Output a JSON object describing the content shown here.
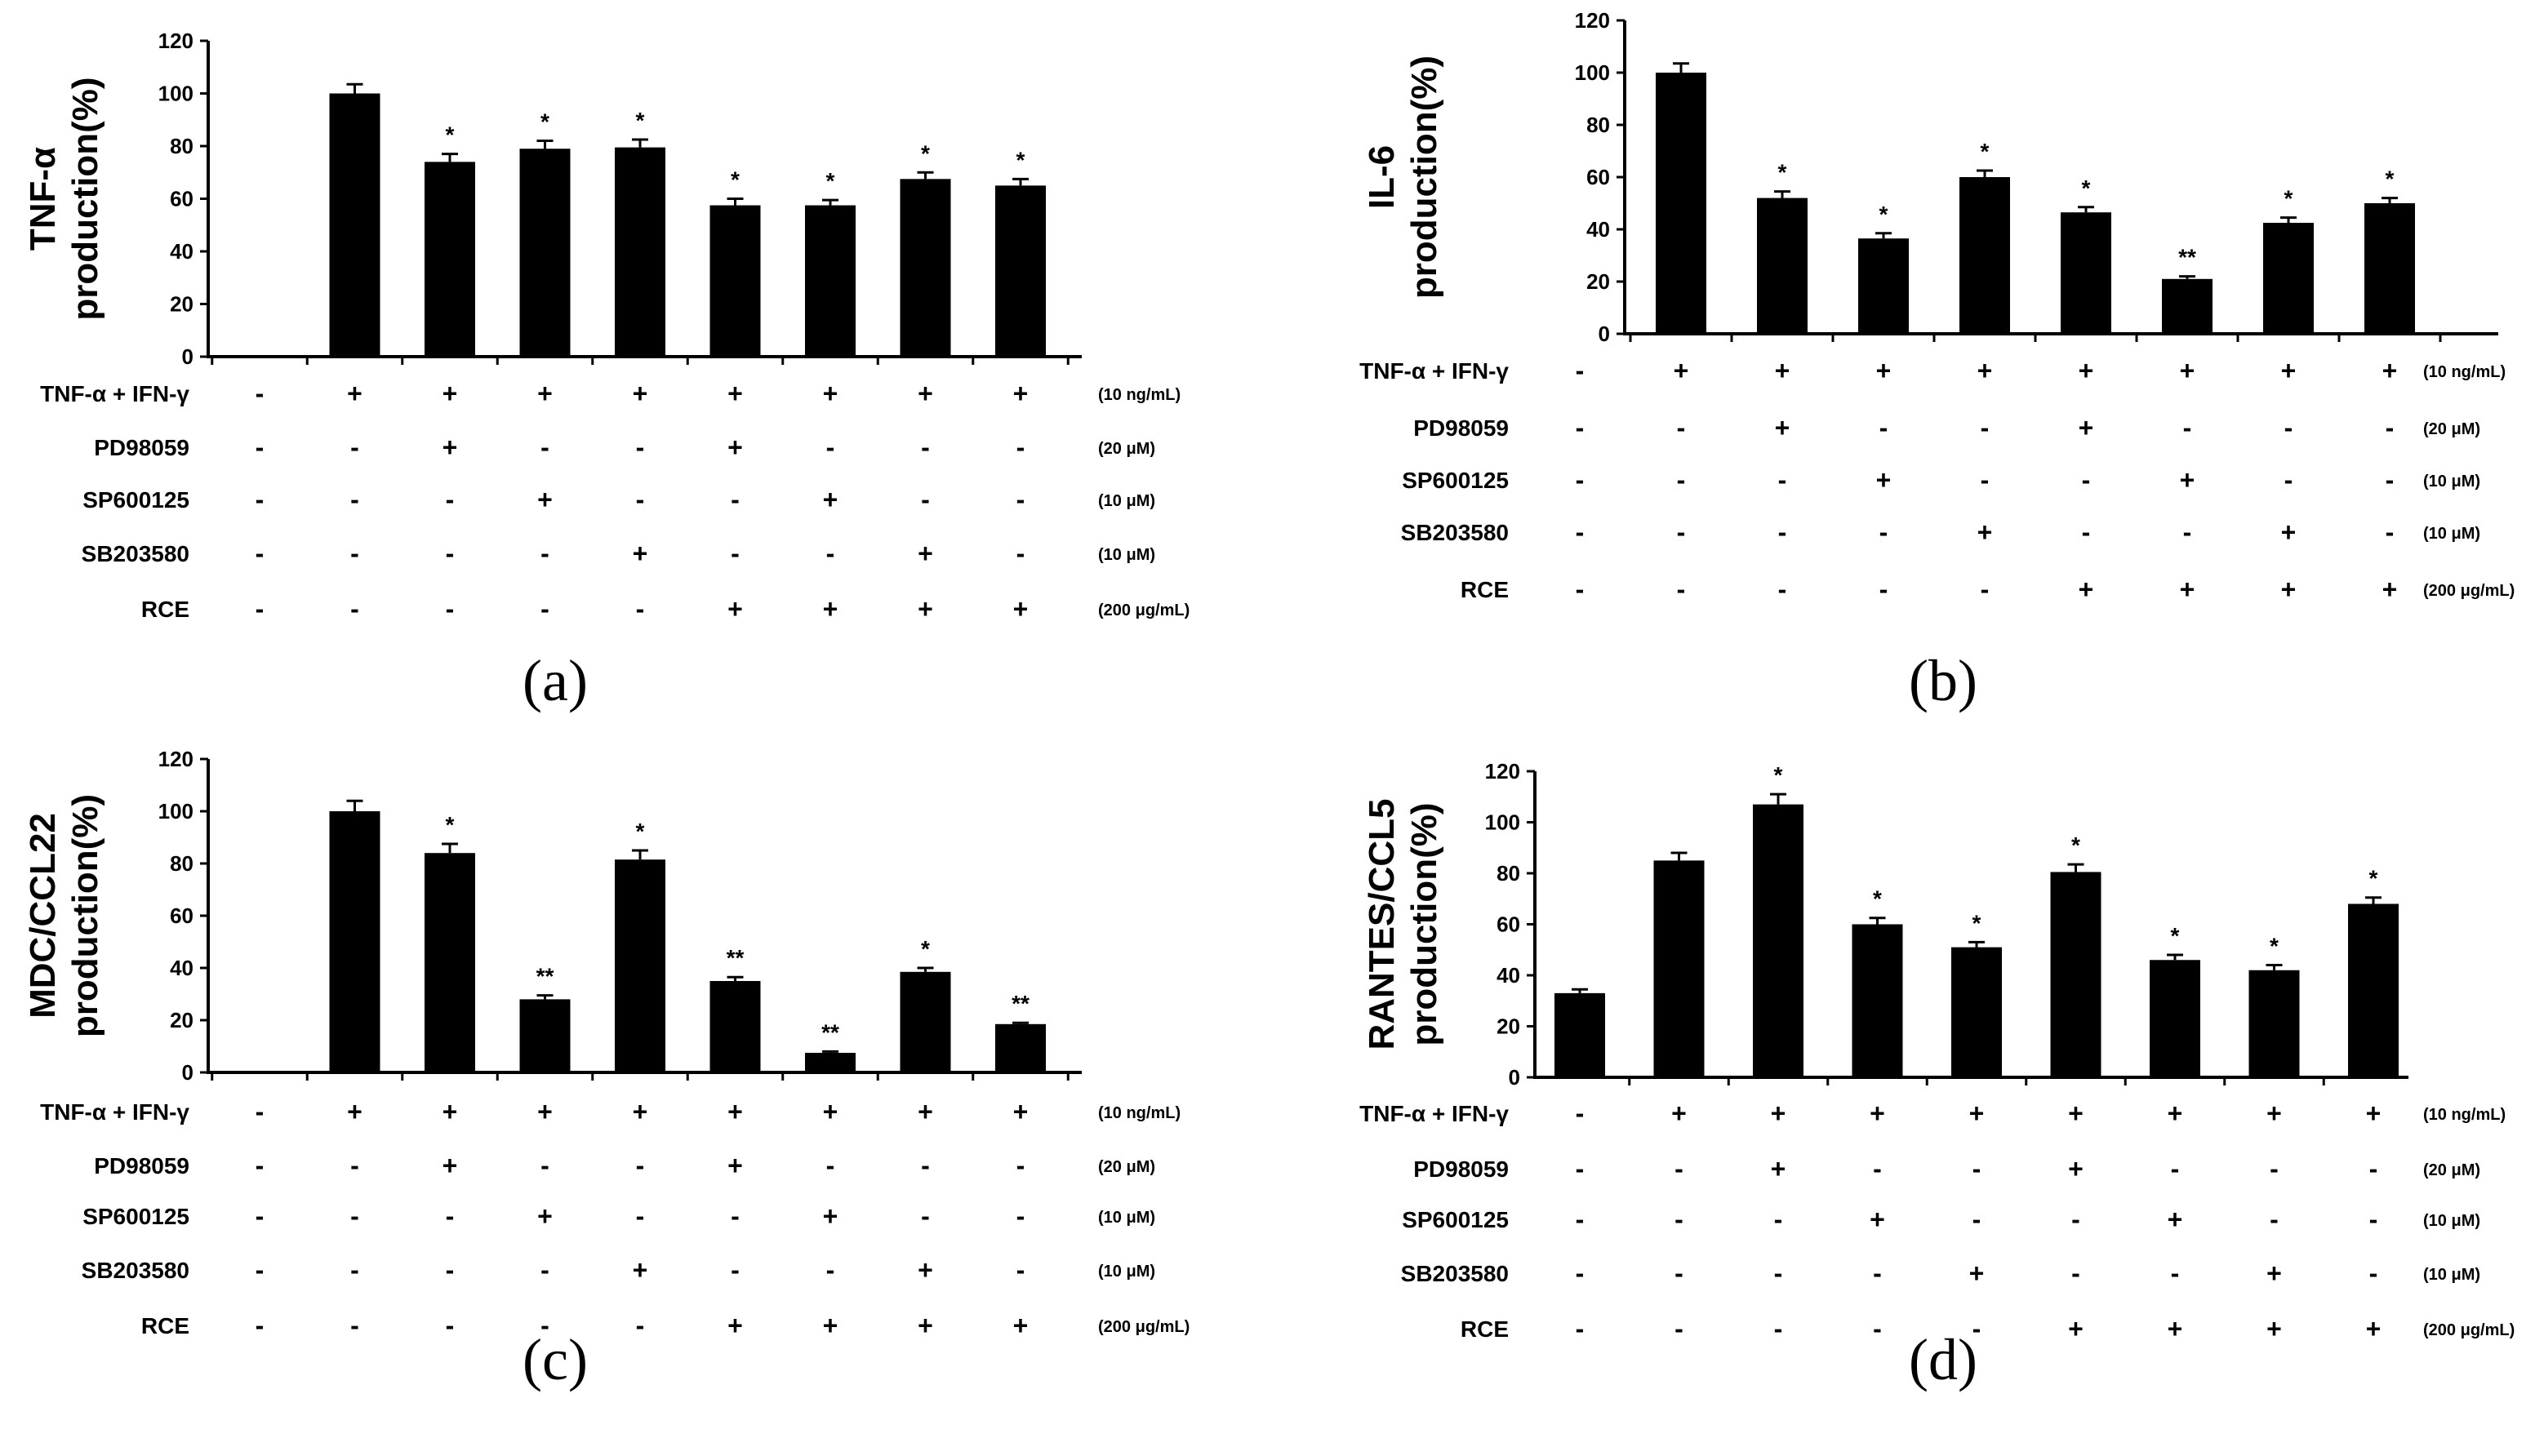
{
  "chart_data": [
    {
      "type": "bar",
      "panel_label": "(a)",
      "ylabel": [
        "TNF-α",
        "production(%)"
      ],
      "ylim": [
        0,
        120
      ],
      "yticks": [
        "0",
        "20",
        "40",
        "60",
        "80",
        "100",
        "120"
      ],
      "values": [
        null,
        100,
        74,
        79,
        79.5,
        57.5,
        57.5,
        67.5,
        65
      ],
      "errors": [
        0,
        3.5,
        3,
        3,
        3,
        2.5,
        2,
        2.5,
        2.5
      ],
      "significance": [
        "",
        "",
        "*",
        "*",
        "*",
        "*",
        "*",
        "*",
        "*"
      ],
      "conditions": [
        {
          "label": "TNF-α + IFN-γ",
          "signs": [
            "-",
            "+",
            "+",
            "+",
            "+",
            "+",
            "+",
            "+",
            "+"
          ],
          "conc": "(10 ng/mL)"
        },
        {
          "label": "PD98059",
          "signs": [
            "-",
            "-",
            "+",
            "-",
            "-",
            "+",
            "-",
            "-",
            "-"
          ],
          "conc": "(20 μM)"
        },
        {
          "label": "SP600125",
          "signs": [
            "-",
            "-",
            "-",
            "+",
            "-",
            "-",
            "+",
            "-",
            "-"
          ],
          "conc": "(10 μM)"
        },
        {
          "label": "SB203580",
          "signs": [
            "-",
            "-",
            "-",
            "-",
            "+",
            "-",
            "-",
            "+",
            "-"
          ],
          "conc": "(10 μM)"
        },
        {
          "label": "RCE",
          "signs": [
            "-",
            "-",
            "-",
            "-",
            "-",
            "+",
            "+",
            "+",
            "+"
          ],
          "conc": "(200 μg/mL)"
        }
      ]
    },
    {
      "type": "bar",
      "panel_label": "(b)",
      "ylabel": [
        "IL-6",
        "production(%)"
      ],
      "ylim": [
        0,
        120
      ],
      "yticks": [
        "0",
        "20",
        "40",
        "60",
        "80",
        "100",
        "120"
      ],
      "values": [
        null,
        100,
        52,
        36.5,
        60,
        46.5,
        21,
        42.5,
        50
      ],
      "errors": [
        0,
        3.5,
        2.5,
        2,
        2.5,
        2,
        1,
        2,
        2
      ],
      "significance": [
        "",
        "",
        "*",
        "*",
        "*",
        "*",
        "**",
        "*",
        "*"
      ],
      "conditions": [
        {
          "label": "TNF-α + IFN-γ",
          "signs": [
            "-",
            "+",
            "+",
            "+",
            "+",
            "+",
            "+",
            "+",
            "+"
          ],
          "conc": "(10 ng/mL)"
        },
        {
          "label": "PD98059",
          "signs": [
            "-",
            "-",
            "+",
            "-",
            "-",
            "+",
            "-",
            "-",
            "-"
          ],
          "conc": "(20 μM)"
        },
        {
          "label": "SP600125",
          "signs": [
            "-",
            "-",
            "-",
            "+",
            "-",
            "-",
            "+",
            "-",
            "-"
          ],
          "conc": "(10 μM)"
        },
        {
          "label": "SB203580",
          "signs": [
            "-",
            "-",
            "-",
            "-",
            "+",
            "-",
            "-",
            "+",
            "-"
          ],
          "conc": "(10 μM)"
        },
        {
          "label": "RCE",
          "signs": [
            "-",
            "-",
            "-",
            "-",
            "-",
            "+",
            "+",
            "+",
            "+"
          ],
          "conc": "(200 μg/mL)"
        }
      ]
    },
    {
      "type": "bar",
      "panel_label": "(c)",
      "ylabel": [
        "MDC/CCL22",
        "production(%)"
      ],
      "ylim": [
        0,
        120
      ],
      "yticks": [
        "0",
        "20",
        "40",
        "60",
        "80",
        "100",
        "120"
      ],
      "values": [
        null,
        100,
        84,
        28,
        81.5,
        35,
        7.5,
        38.5,
        18.5
      ],
      "errors": [
        0,
        4,
        3.5,
        1.5,
        3.5,
        1.5,
        0.5,
        1.5,
        0.5
      ],
      "significance": [
        "",
        "",
        "*",
        "**",
        "*",
        "**",
        "**",
        "*",
        "**"
      ],
      "conditions": [
        {
          "label": "TNF-α + IFN-γ",
          "signs": [
            "-",
            "+",
            "+",
            "+",
            "+",
            "+",
            "+",
            "+",
            "+"
          ],
          "conc": "(10 ng/mL)"
        },
        {
          "label": "PD98059",
          "signs": [
            "-",
            "-",
            "+",
            "-",
            "-",
            "+",
            "-",
            "-",
            "-"
          ],
          "conc": "(20 μM)"
        },
        {
          "label": "SP600125",
          "signs": [
            "-",
            "-",
            "-",
            "+",
            "-",
            "-",
            "+",
            "-",
            "-"
          ],
          "conc": "(10 μM)"
        },
        {
          "label": "SB203580",
          "signs": [
            "-",
            "-",
            "-",
            "-",
            "+",
            "-",
            "-",
            "+",
            "-"
          ],
          "conc": "(10 μM)"
        },
        {
          "label": "RCE",
          "signs": [
            "-",
            "-",
            "-",
            "-",
            "-",
            "+",
            "+",
            "+",
            "+"
          ],
          "conc": "(200 μg/mL)"
        }
      ]
    },
    {
      "type": "bar",
      "panel_label": "(d)",
      "ylabel": [
        "RANTES/CCL5",
        "production(%)"
      ],
      "ylim": [
        0,
        120
      ],
      "yticks": [
        "0",
        "20",
        "40",
        "60",
        "80",
        "100",
        "120"
      ],
      "values": [
        33,
        85,
        107,
        60,
        51,
        80.5,
        46,
        42,
        68
      ],
      "errors": [
        1.5,
        3,
        4,
        2.5,
        2,
        3,
        2,
        2,
        2.5
      ],
      "significance": [
        "",
        "",
        "*",
        "*",
        "*",
        "*",
        "*",
        "*",
        "*"
      ],
      "conditions": [
        {
          "label": "TNF-α + IFN-γ",
          "signs": [
            "-",
            "+",
            "+",
            "+",
            "+",
            "+",
            "+",
            "+",
            "+"
          ],
          "conc": "(10 ng/mL)"
        },
        {
          "label": "PD98059",
          "signs": [
            "-",
            "-",
            "+",
            "-",
            "-",
            "+",
            "-",
            "-",
            "-"
          ],
          "conc": "(20 μM)"
        },
        {
          "label": "SP600125",
          "signs": [
            "-",
            "-",
            "-",
            "+",
            "-",
            "-",
            "+",
            "-",
            "-"
          ],
          "conc": "(10 μM)"
        },
        {
          "label": "SB203580",
          "signs": [
            "-",
            "-",
            "-",
            "-",
            "+",
            "-",
            "-",
            "+",
            "-"
          ],
          "conc": "(10 μM)"
        },
        {
          "label": "RCE",
          "signs": [
            "-",
            "-",
            "-",
            "-",
            "-",
            "+",
            "+",
            "+",
            "+"
          ],
          "conc": "(200 μg/mL)"
        }
      ]
    }
  ]
}
